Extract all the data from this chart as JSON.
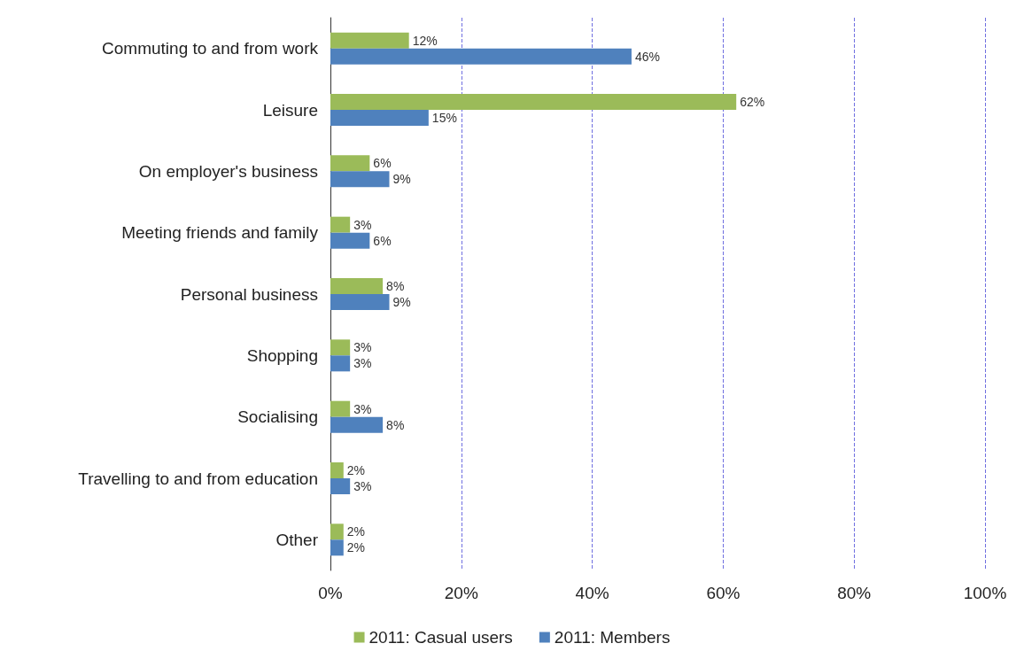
{
  "chart_data": {
    "type": "bar",
    "orientation": "horizontal",
    "categories": [
      "Commuting to and from work",
      "Leisure",
      "On employer's business",
      "Meeting friends and family",
      "Personal business",
      "Shopping",
      "Socialising",
      "Travelling to and from education",
      "Other"
    ],
    "series": [
      {
        "name": "2011: Casual users",
        "color": "#9bbb59",
        "values": [
          12,
          62,
          6,
          3,
          8,
          3,
          3,
          2,
          2
        ],
        "value_labels": [
          "12%",
          "62%",
          "6%",
          "3%",
          "8%",
          "3%",
          "3%",
          "2%",
          "2%"
        ]
      },
      {
        "name": "2011: Members",
        "color": "#4f81bd",
        "values": [
          46,
          15,
          9,
          6,
          9,
          3,
          8,
          3,
          2
        ],
        "value_labels": [
          "46%",
          "15%",
          "9%",
          "6%",
          "9%",
          "3%",
          "8%",
          "3%",
          "2%"
        ]
      }
    ],
    "xlim": [
      0,
      100
    ],
    "xticks": [
      {
        "value": 0,
        "label": "0%"
      },
      {
        "value": 20,
        "label": "20%"
      },
      {
        "value": 40,
        "label": "40%"
      },
      {
        "value": 60,
        "label": "60%"
      },
      {
        "value": 80,
        "label": "80%"
      },
      {
        "value": 100,
        "label": "100%"
      }
    ],
    "grid": "x",
    "legend": "bottom"
  }
}
